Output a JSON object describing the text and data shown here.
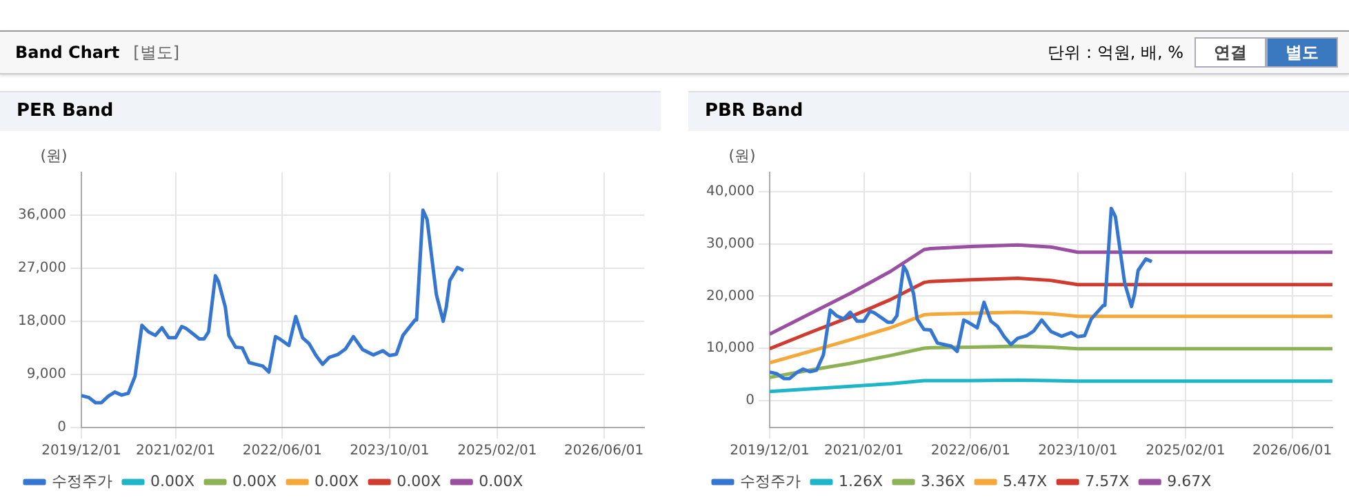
{
  "chart_data": [
    {
      "type": "other",
      "title": "Band Chart",
      "subtitle": "[별도]",
      "annotations": [
        "단위 : 억원, 배, %",
        "연결",
        "별도"
      ]
    },
    {
      "type": "line",
      "title": "PER Band",
      "ylabel": "(원)",
      "xlim": [
        "2019-12-01",
        "2026-12-01"
      ],
      "xticks": [
        {
          "value": "2019-12-01",
          "label": "2019/12/01"
        },
        {
          "value": "2021-02-01",
          "label": "2021/02/01"
        },
        {
          "value": "2022-06-01",
          "label": "2022/06/01"
        },
        {
          "value": "2023-10-01",
          "label": "2023/10/01"
        },
        {
          "value": "2025-02-01",
          "label": "2025/02/01"
        },
        {
          "value": "2026-06-01",
          "label": "2026/06/01"
        }
      ],
      "ylim": [
        0,
        43200
      ],
      "yticks": [
        0,
        {
          "value": 9000,
          "label": "9,000"
        },
        {
          "value": 18000,
          "label": "18,000"
        },
        {
          "value": 27000,
          "label": "27,000"
        },
        {
          "value": 36000,
          "label": "36,000"
        }
      ],
      "grid": true,
      "legend": "bottom",
      "marker": "none",
      "series": [
        {
          "name": "수정주가",
          "color": "#3576d0",
          "x": [
            "2019-12-01",
            "2020-01-03",
            "2020-02-03",
            "2020-03-01",
            "2020-04-01",
            "2020-05-01",
            "2020-06-01",
            "2020-07-01",
            "2020-08-01",
            "2020-08-15",
            "2020-09-01",
            "2020-10-01",
            "2020-11-01",
            "2020-12-01",
            "2021-01-01",
            "2021-02-01",
            "2021-03-01",
            "2021-03-20",
            "2021-04-20",
            "2021-05-20",
            "2021-06-10",
            "2021-07-01",
            "2021-08-01",
            "2021-08-15",
            "2021-09-15",
            "2021-10-01",
            "2021-11-01",
            "2021-12-01",
            "2022-01-01",
            "2022-02-01",
            "2022-03-05",
            "2022-04-01",
            "2022-05-01",
            "2022-05-20",
            "2022-07-01",
            "2022-08-01",
            "2022-09-01",
            "2022-10-01",
            "2022-11-01",
            "2022-12-01",
            "2023-01-01",
            "2023-02-10",
            "2023-03-15",
            "2023-04-20",
            "2023-06-01",
            "2023-07-20",
            "2023-09-01",
            "2023-10-01",
            "2023-11-01",
            "2023-12-01",
            "2024-01-25",
            "2024-02-01",
            "2024-03-01",
            "2024-03-20",
            "2024-04-12",
            "2024-05-01",
            "2024-06-01",
            "2024-06-15",
            "2024-07-01",
            "2024-08-05",
            "2024-09-01"
          ],
          "values": [
            5400,
            5100,
            4200,
            4200,
            5300,
            6000,
            5500,
            5800,
            8700,
            12600,
            17300,
            16200,
            15600,
            16900,
            15200,
            15200,
            17100,
            16800,
            15900,
            15000,
            15000,
            16200,
            25700,
            24700,
            20400,
            15600,
            13600,
            13500,
            11000,
            10700,
            10400,
            9400,
            15400,
            15000,
            13900,
            18800,
            15200,
            14200,
            12200,
            10700,
            11900,
            12400,
            13300,
            15400,
            13200,
            12300,
            13000,
            12200,
            12400,
            15600,
            18200,
            18200,
            36800,
            35200,
            28200,
            22500,
            18000,
            20400,
            24900,
            27100,
            26600
          ]
        },
        {
          "name": "0.00X",
          "color": "#1fb5c9"
        },
        {
          "name": "0.00X",
          "color": "#8db255"
        },
        {
          "name": "0.00X",
          "color": "#f5a83a"
        },
        {
          "name": "0.00X",
          "color": "#cf3b2e"
        },
        {
          "name": "0.00X",
          "color": "#9a4fa0"
        }
      ]
    },
    {
      "type": "line",
      "title": "PBR Band",
      "ylabel": "(원)",
      "xlim": [
        "2019-12-01",
        "2026-12-01"
      ],
      "xticks": [
        {
          "value": "2019-12-01",
          "label": "2019/12/01"
        },
        {
          "value": "2021-02-01",
          "label": "2021/02/01"
        },
        {
          "value": "2022-06-01",
          "label": "2022/06/01"
        },
        {
          "value": "2023-10-01",
          "label": "2023/10/01"
        },
        {
          "value": "2025-02-01",
          "label": "2025/02/01"
        },
        {
          "value": "2026-06-01",
          "label": "2026/06/01"
        }
      ],
      "ylim": [
        -5200,
        43700
      ],
      "yticks": [
        0,
        {
          "value": 10000,
          "label": "10,000"
        },
        {
          "value": 20000,
          "label": "20,000"
        },
        {
          "value": 30000,
          "label": "30,000"
        },
        {
          "value": 40000,
          "label": "40,000"
        }
      ],
      "grid": true,
      "legend": "bottom",
      "marker": "none",
      "series": [
        {
          "name": "수정주가",
          "color": "#3576d0",
          "x": [
            "2019-12-01",
            "2020-01-03",
            "2020-02-03",
            "2020-03-01",
            "2020-04-01",
            "2020-05-01",
            "2020-06-01",
            "2020-07-01",
            "2020-08-01",
            "2020-08-15",
            "2020-09-01",
            "2020-10-01",
            "2020-11-01",
            "2020-12-01",
            "2021-01-01",
            "2021-02-01",
            "2021-03-01",
            "2021-03-20",
            "2021-04-20",
            "2021-05-20",
            "2021-06-10",
            "2021-07-01",
            "2021-08-01",
            "2021-08-15",
            "2021-09-15",
            "2021-10-01",
            "2021-11-01",
            "2021-12-01",
            "2022-01-01",
            "2022-02-01",
            "2022-03-05",
            "2022-04-01",
            "2022-05-01",
            "2022-05-20",
            "2022-07-01",
            "2022-08-01",
            "2022-09-01",
            "2022-10-01",
            "2022-11-01",
            "2022-12-01",
            "2023-01-01",
            "2023-02-10",
            "2023-03-15",
            "2023-04-20",
            "2023-06-01",
            "2023-07-20",
            "2023-09-01",
            "2023-10-01",
            "2023-11-01",
            "2023-12-01",
            "2024-01-25",
            "2024-02-01",
            "2024-03-01",
            "2024-03-20",
            "2024-04-12",
            "2024-05-01",
            "2024-06-01",
            "2024-06-15",
            "2024-07-01",
            "2024-08-05",
            "2024-09-01"
          ],
          "values": [
            5400,
            5100,
            4200,
            4200,
            5300,
            6000,
            5500,
            5800,
            8700,
            12600,
            17300,
            16200,
            15600,
            16900,
            15200,
            15200,
            17100,
            16800,
            15900,
            15000,
            15000,
            16200,
            25700,
            24700,
            20400,
            15600,
            13600,
            13500,
            11000,
            10700,
            10400,
            9400,
            15400,
            15000,
            13900,
            18800,
            15200,
            14200,
            12200,
            10700,
            11900,
            12400,
            13300,
            15400,
            13200,
            12300,
            13000,
            12200,
            12400,
            15600,
            18200,
            18200,
            36800,
            35200,
            28200,
            22500,
            18000,
            20400,
            24900,
            27100,
            26600
          ]
        },
        {
          "name": "1.26X",
          "color": "#1fb5c9",
          "x": [
            "2019-12-01",
            "2020-06-01",
            "2020-12-01",
            "2021-06-01",
            "2021-11-01",
            "2021-12-01",
            "2022-06-01",
            "2023-01-01",
            "2023-06-01",
            "2023-10-01",
            "2026-12-01"
          ],
          "values": [
            1700,
            2200,
            2700,
            3200,
            3800,
            3800,
            3800,
            3900,
            3800,
            3700,
            3700
          ]
        },
        {
          "name": "3.36X",
          "color": "#8db255",
          "x": [
            "2019-12-01",
            "2020-06-01",
            "2020-12-01",
            "2021-06-01",
            "2021-11-01",
            "2021-12-01",
            "2022-06-01",
            "2023-01-01",
            "2023-06-01",
            "2023-10-01",
            "2026-12-01"
          ],
          "values": [
            4400,
            5800,
            7100,
            8600,
            10000,
            10100,
            10200,
            10400,
            10200,
            9900,
            9900
          ]
        },
        {
          "name": "5.47X",
          "color": "#f5a83a",
          "x": [
            "2019-12-01",
            "2020-06-01",
            "2020-12-01",
            "2021-06-01",
            "2021-11-01",
            "2021-12-01",
            "2022-06-01",
            "2023-01-01",
            "2023-06-01",
            "2023-10-01",
            "2026-12-01"
          ],
          "values": [
            7200,
            9400,
            11600,
            13900,
            16400,
            16500,
            16700,
            16900,
            16600,
            16100,
            16100
          ]
        },
        {
          "name": "7.57X",
          "color": "#cf3b2e",
          "x": [
            "2019-12-01",
            "2020-06-01",
            "2020-12-01",
            "2021-06-01",
            "2021-11-01",
            "2021-12-01",
            "2022-06-01",
            "2023-01-01",
            "2023-06-01",
            "2023-10-01",
            "2026-12-01"
          ],
          "values": [
            9900,
            13000,
            16000,
            19300,
            22600,
            22800,
            23100,
            23400,
            23000,
            22200,
            22200
          ]
        },
        {
          "name": "9.67X",
          "color": "#9a4fa0",
          "x": [
            "2019-12-01",
            "2020-06-01",
            "2020-12-01",
            "2021-06-01",
            "2021-11-01",
            "2021-12-01",
            "2022-06-01",
            "2023-01-01",
            "2023-06-01",
            "2023-10-01",
            "2026-12-01"
          ],
          "values": [
            12700,
            16600,
            20500,
            24700,
            28900,
            29100,
            29500,
            29800,
            29400,
            28400,
            28400
          ]
        }
      ]
    }
  ]
}
